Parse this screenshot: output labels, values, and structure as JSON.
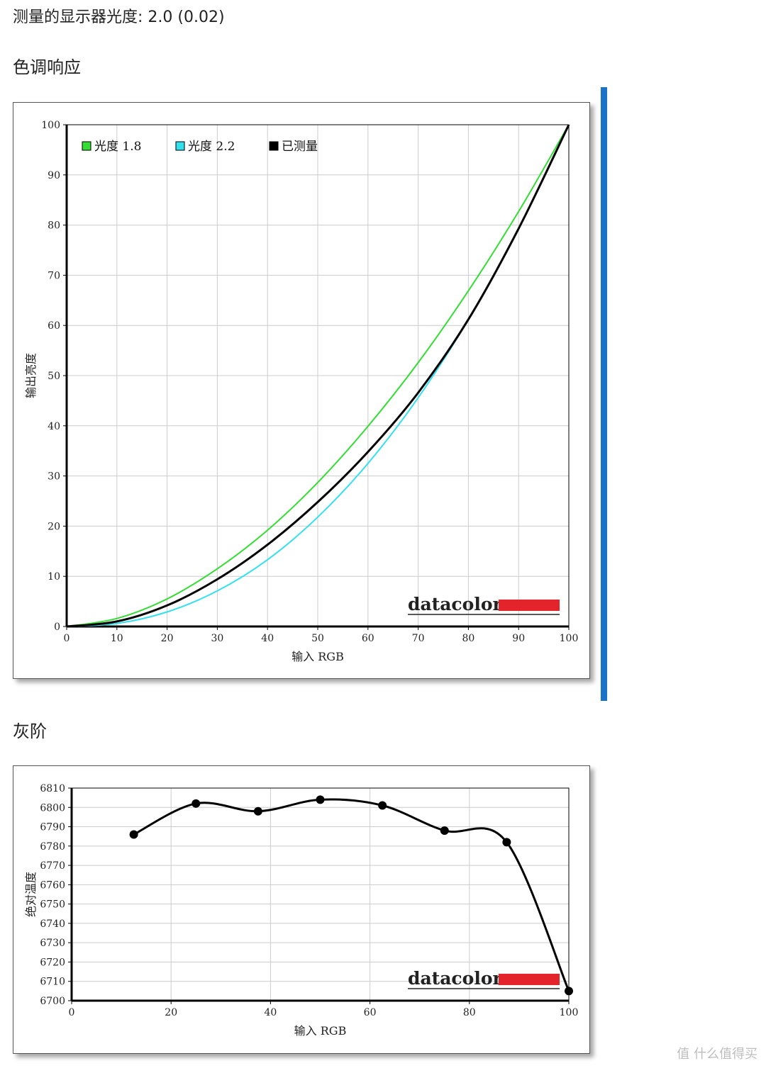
{
  "page": {
    "gamma_text": "测量的显示器光度: 2.0 (0.02)",
    "tone_heading": "色调响应",
    "gray_heading": "灰阶",
    "watermark": "值 什么值得买",
    "accent_color": "#1a73c8"
  },
  "chart_data": [
    {
      "type": "line",
      "title": "",
      "xlabel": "输入 RGB",
      "ylabel": "输出亮度",
      "xlim": [
        0,
        100
      ],
      "ylim": [
        0,
        100
      ],
      "xticks": [
        0,
        10,
        20,
        30,
        40,
        50,
        60,
        70,
        80,
        90,
        100
      ],
      "yticks": [
        0,
        10,
        20,
        30,
        40,
        50,
        60,
        70,
        80,
        90,
        100
      ],
      "grid": true,
      "legend_position": "top-left",
      "logo": "datacolor",
      "series": [
        {
          "name": "光度 1.8",
          "color": "#33dd33",
          "x": [
            0,
            10,
            20,
            30,
            40,
            50,
            60,
            70,
            80,
            90,
            100
          ],
          "y": [
            0,
            1.6,
            5.5,
            11.5,
            19.2,
            28.7,
            39.9,
            52.6,
            66.9,
            82.7,
            100
          ]
        },
        {
          "name": "光度 2.2",
          "color": "#33e0ee",
          "x": [
            0,
            10,
            20,
            30,
            40,
            50,
            60,
            70,
            80,
            90,
            100
          ],
          "y": [
            0,
            0.6,
            2.9,
            7.1,
            13.3,
            21.8,
            32.5,
            45.6,
            61.2,
            79.3,
            100
          ]
        },
        {
          "name": "已测量",
          "color": "#000000",
          "x": [
            0,
            10,
            20,
            30,
            40,
            50,
            60,
            70,
            80,
            90,
            100
          ],
          "y": [
            0,
            1.0,
            4.2,
            9.4,
            16.3,
            24.8,
            34.8,
            46.6,
            61.2,
            79.3,
            100
          ]
        }
      ]
    },
    {
      "type": "line",
      "title": "",
      "xlabel": "输入 RGB",
      "ylabel": "绝对温度",
      "xlim": [
        0,
        100
      ],
      "ylim": [
        6700,
        6810
      ],
      "xticks": [
        0,
        20,
        40,
        60,
        80,
        100
      ],
      "yticks": [
        6700,
        6710,
        6720,
        6730,
        6740,
        6750,
        6760,
        6770,
        6780,
        6790,
        6800,
        6810
      ],
      "grid": true,
      "logo": "datacolor",
      "series": [
        {
          "name": "",
          "color": "#000000",
          "markers": true,
          "x": [
            12.5,
            25,
            37.5,
            50,
            62.5,
            75,
            87.5,
            100
          ],
          "y": [
            6786,
            6802,
            6798,
            6804,
            6801,
            6788,
            6782,
            6705
          ]
        }
      ]
    }
  ]
}
